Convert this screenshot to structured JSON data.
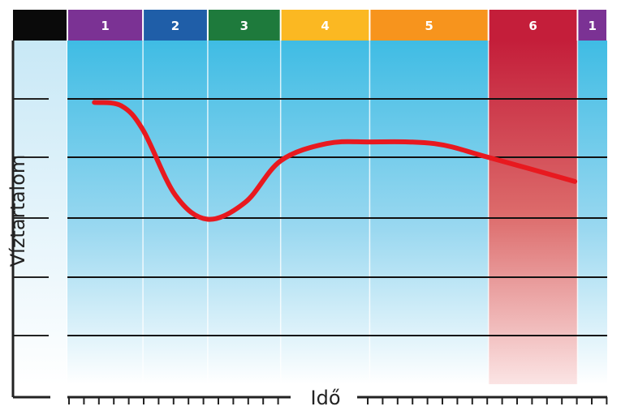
{
  "chart_data": {
    "type": "line",
    "xlabel": "Idő",
    "ylabel": "Víztartalom",
    "grid": true,
    "phases": [
      {
        "label": "1",
        "color": "#7b3294",
        "start": 0.0,
        "end": 0.14
      },
      {
        "label": "2",
        "color": "#1f5ea8",
        "start": 0.14,
        "end": 0.26
      },
      {
        "label": "3",
        "color": "#1e7a3c",
        "start": 0.26,
        "end": 0.395
      },
      {
        "label": "4",
        "color": "#fbb822",
        "start": 0.395,
        "end": 0.56
      },
      {
        "label": "5",
        "color": "#f7941d",
        "start": 0.56,
        "end": 0.78
      },
      {
        "label": "6",
        "color": "#c41e3a",
        "start": 0.78,
        "end": 0.945
      },
      {
        "label": "1",
        "color": "#7b3294",
        "start": 0.945,
        "end": 1.0
      }
    ],
    "series": [
      {
        "color": "#e8191f",
        "x": [
          0.05,
          0.1,
          0.14,
          0.2,
          0.26,
          0.33,
          0.395,
          0.48,
          0.56,
          0.68,
          0.78,
          0.94
        ],
        "y": [
          0.82,
          0.81,
          0.74,
          0.55,
          0.48,
          0.53,
          0.65,
          0.7,
          0.705,
          0.7,
          0.66,
          0.59
        ]
      }
    ],
    "xlim": [
      0,
      1
    ],
    "ylim": [
      0,
      1
    ]
  }
}
